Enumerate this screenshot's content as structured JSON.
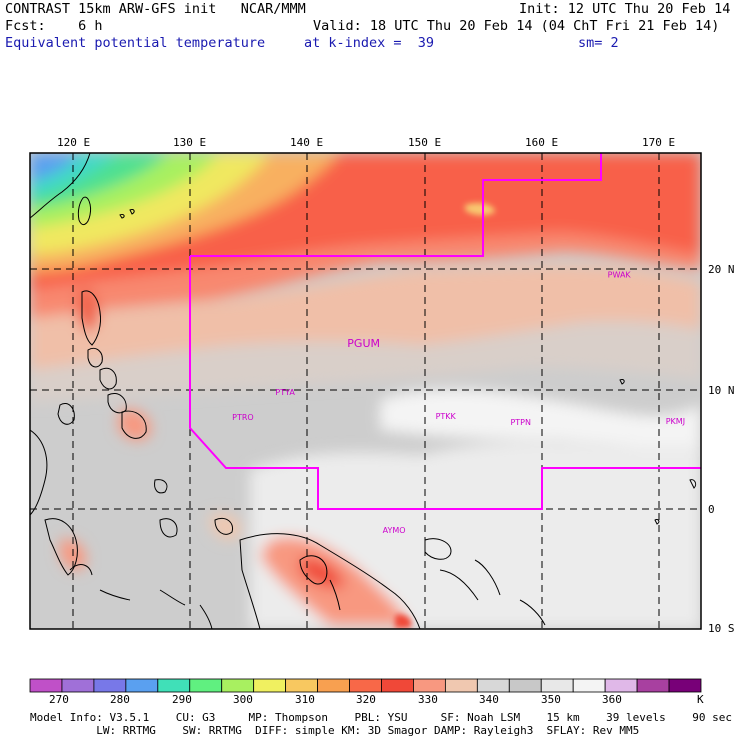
{
  "header": {
    "line1_left": "CONTRAST 15km ARW-GFS init   NCAR/MMM",
    "line1_right": "Init: 12 UTC Thu 20 Feb 14",
    "line2_left": "Fcst:    6 h",
    "line2_right": "Valid: 18 UTC Thu 20 Feb 14 (04 ChT Fri 21 Feb 14)",
    "line3_field": "Equivalent potential temperature",
    "line3_level": "at k-index =  39",
    "line3_sm": "sm= 2"
  },
  "map": {
    "lon_labels": [
      "120 E",
      "130 E",
      "140 E",
      "150 E",
      "160 E",
      "170 E"
    ],
    "lat_labels": [
      "20 N",
      "10 N",
      "0",
      "10 S"
    ],
    "stations": [
      {
        "id": "PWAK",
        "lon": 166.6,
        "lat": 19.3
      },
      {
        "id": "PGUM",
        "lon": 144.8,
        "lat": 13.5
      },
      {
        "id": "PTYA",
        "lon": 138.1,
        "lat": 9.5
      },
      {
        "id": "PTRO",
        "lon": 134.5,
        "lat": 7.4
      },
      {
        "id": "PTKK",
        "lon": 151.8,
        "lat": 7.5
      },
      {
        "id": "PTPN",
        "lon": 158.2,
        "lat": 7.0
      },
      {
        "id": "PKMJ",
        "lon": 171.4,
        "lat": 7.1
      },
      {
        "id": "AYMO",
        "lon": 147.4,
        "lat": -2.0
      }
    ],
    "colors": {
      "boundary": "#ff00ff",
      "station": "#cc00cc"
    }
  },
  "colorbar": {
    "unit": "K",
    "labels": [
      "270",
      "280",
      "290",
      "300",
      "310",
      "320",
      "330",
      "340",
      "350",
      "360"
    ],
    "colors": [
      "#c050c8",
      "#a070d8",
      "#7878e8",
      "#5aa0f0",
      "#40e0b8",
      "#60f080",
      "#a8f060",
      "#f0f060",
      "#f8c860",
      "#f8a050",
      "#f86848",
      "#f04838",
      "#f89880",
      "#f0c8b0",
      "#d8d8d8",
      "#c8c8c8",
      "#e8e8e8",
      "#f4f4f4",
      "#e0b8e8",
      "#a840a0",
      "#780078"
    ]
  },
  "footer": {
    "line1": "Model Info: V3.5.1    CU: G3     MP: Thompson    PBL: YSU     SF: Noah LSM    15 km    39 levels    90 sec",
    "line2": "          LW: RRTMG    SW: RRTMG  DIFF: simple KM: 3D Smagor DAMP: Rayleigh3  SFLAY: Rev MM5"
  }
}
